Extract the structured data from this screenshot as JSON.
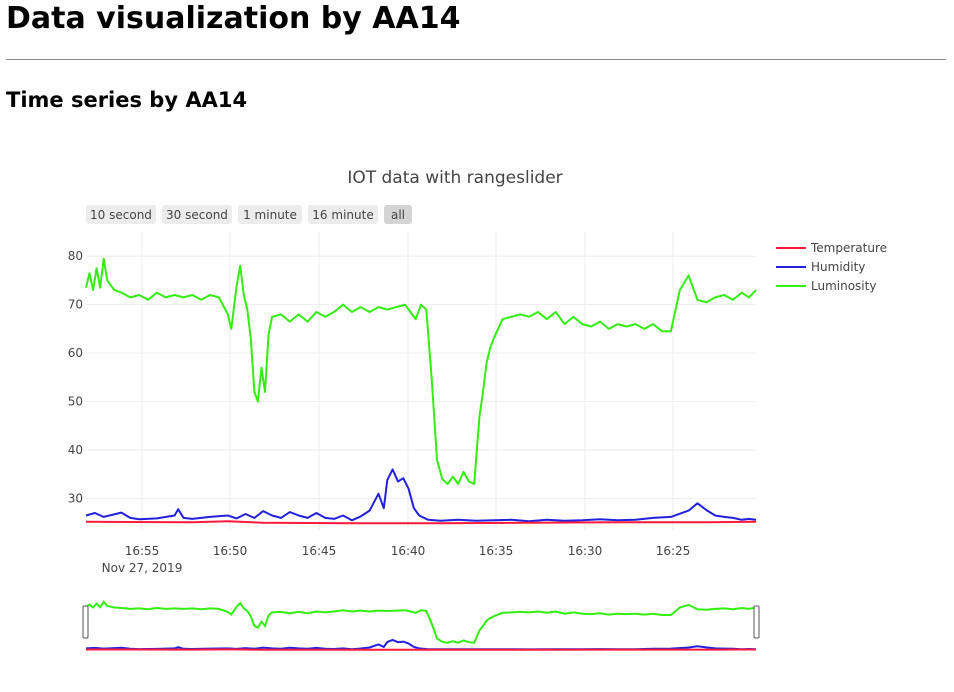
{
  "page": {
    "title": "Data visualization by AA14",
    "section_title": "Time series by AA14"
  },
  "range_selector": {
    "buttons": [
      "10 second",
      "30 second",
      "1 minute",
      "16 minute",
      "all"
    ],
    "active_label": "all"
  },
  "colors": {
    "temperature": "#ff1a3c",
    "humidity": "#2222dd",
    "luminosity": "#33ee11",
    "button_bg": "#ececec",
    "button_active_bg": "#d4d4d4"
  },
  "chart_data": {
    "type": "line",
    "title": "IOT data with rangeslider",
    "x_tick_labels": [
      "16:55",
      "16:50",
      "16:45",
      "16:40",
      "16:35",
      "16:30",
      "16:25"
    ],
    "x_subtitle": "Nov 27, 2019",
    "y_ticks": [
      30,
      40,
      50,
      60,
      70,
      80
    ],
    "ylim": [
      23.5,
      85
    ],
    "x_range_minutes": [
      0,
      37.8
    ],
    "x_axis_order": "reversed (16:55 on left, 16:25 on right)",
    "grid": true,
    "legend_position": "top-right",
    "rangeslider": true,
    "x_note": "x values are minutes elapsed along the axis starting at about 16:57",
    "series": [
      {
        "name": "Temperature",
        "points": [
          [
            0,
            25.2
          ],
          [
            6,
            25.1
          ],
          [
            8,
            25.3
          ],
          [
            10,
            25.0
          ],
          [
            15,
            24.9
          ],
          [
            20,
            24.9
          ],
          [
            25,
            25.0
          ],
          [
            30,
            25.1
          ],
          [
            35,
            25.1
          ],
          [
            37.8,
            25.2
          ]
        ]
      },
      {
        "name": "Humidity",
        "points": [
          [
            0,
            26.5
          ],
          [
            0.5,
            27.0
          ],
          [
            1,
            26.2
          ],
          [
            2,
            27.1
          ],
          [
            2.5,
            26.0
          ],
          [
            3,
            25.7
          ],
          [
            4,
            25.9
          ],
          [
            5,
            26.5
          ],
          [
            5.2,
            27.8
          ],
          [
            5.5,
            26.0
          ],
          [
            6,
            25.8
          ],
          [
            7,
            26.2
          ],
          [
            8,
            26.5
          ],
          [
            8.5,
            25.9
          ],
          [
            9,
            26.8
          ],
          [
            9.5,
            26.0
          ],
          [
            10,
            27.4
          ],
          [
            10.5,
            26.5
          ],
          [
            11,
            26.0
          ],
          [
            11.5,
            27.2
          ],
          [
            12,
            26.5
          ],
          [
            12.5,
            26.0
          ],
          [
            13,
            27.0
          ],
          [
            13.5,
            26.0
          ],
          [
            14,
            25.8
          ],
          [
            14.5,
            26.5
          ],
          [
            15,
            25.5
          ],
          [
            15.5,
            26.3
          ],
          [
            16,
            27.5
          ],
          [
            16.5,
            31.0
          ],
          [
            16.8,
            28.0
          ],
          [
            17,
            33.8
          ],
          [
            17.3,
            36.0
          ],
          [
            17.6,
            33.5
          ],
          [
            17.9,
            34.2
          ],
          [
            18.2,
            32.0
          ],
          [
            18.5,
            28.0
          ],
          [
            18.8,
            26.5
          ],
          [
            19.3,
            25.6
          ],
          [
            20,
            25.4
          ],
          [
            21,
            25.6
          ],
          [
            22,
            25.4
          ],
          [
            23,
            25.5
          ],
          [
            24,
            25.6
          ],
          [
            25,
            25.3
          ],
          [
            26,
            25.6
          ],
          [
            27,
            25.4
          ],
          [
            28,
            25.5
          ],
          [
            29,
            25.7
          ],
          [
            30,
            25.5
          ],
          [
            31,
            25.6
          ],
          [
            32,
            26.0
          ],
          [
            33,
            26.2
          ],
          [
            34,
            27.5
          ],
          [
            34.5,
            29.0
          ],
          [
            35,
            27.6
          ],
          [
            35.5,
            26.5
          ],
          [
            36,
            26.2
          ],
          [
            36.5,
            26.0
          ],
          [
            37,
            25.6
          ],
          [
            37.4,
            25.8
          ],
          [
            37.8,
            25.6
          ]
        ]
      },
      {
        "name": "Luminosity",
        "points": [
          [
            0,
            73.5
          ],
          [
            0.2,
            76.5
          ],
          [
            0.4,
            73.0
          ],
          [
            0.6,
            77.5
          ],
          [
            0.8,
            73.5
          ],
          [
            1,
            79.5
          ],
          [
            1.2,
            75.0
          ],
          [
            1.4,
            74.0
          ],
          [
            1.6,
            73.0
          ],
          [
            2,
            72.5
          ],
          [
            2.5,
            71.5
          ],
          [
            3,
            72.0
          ],
          [
            3.5,
            71.0
          ],
          [
            4,
            72.5
          ],
          [
            4.5,
            71.5
          ],
          [
            5,
            72.0
          ],
          [
            5.5,
            71.5
          ],
          [
            6,
            72.0
          ],
          [
            6.5,
            71.0
          ],
          [
            7,
            72.0
          ],
          [
            7.5,
            71.5
          ],
          [
            8,
            68.0
          ],
          [
            8.2,
            65.0
          ],
          [
            8.5,
            74.0
          ],
          [
            8.7,
            78.0
          ],
          [
            8.9,
            72.0
          ],
          [
            9.1,
            69.0
          ],
          [
            9.3,
            63.0
          ],
          [
            9.5,
            52.0
          ],
          [
            9.7,
            50.0
          ],
          [
            9.9,
            57.0
          ],
          [
            10.1,
            52.0
          ],
          [
            10.3,
            64.0
          ],
          [
            10.5,
            67.5
          ],
          [
            11,
            68.0
          ],
          [
            11.5,
            66.5
          ],
          [
            12,
            68.0
          ],
          [
            12.5,
            66.5
          ],
          [
            13,
            68.5
          ],
          [
            13.5,
            67.5
          ],
          [
            14,
            68.5
          ],
          [
            14.5,
            70.0
          ],
          [
            15,
            68.5
          ],
          [
            15.5,
            69.5
          ],
          [
            16,
            68.5
          ],
          [
            16.5,
            69.5
          ],
          [
            17,
            69.0
          ],
          [
            17.5,
            69.5
          ],
          [
            18,
            70.0
          ],
          [
            18.3,
            68.5
          ],
          [
            18.6,
            67.0
          ],
          [
            18.9,
            70.0
          ],
          [
            19.2,
            69.0
          ],
          [
            19.5,
            55.0
          ],
          [
            19.8,
            38.0
          ],
          [
            20.1,
            34.0
          ],
          [
            20.4,
            33.0
          ],
          [
            20.7,
            34.5
          ],
          [
            21,
            33.0
          ],
          [
            21.3,
            35.5
          ],
          [
            21.6,
            33.5
          ],
          [
            21.9,
            33.0
          ],
          [
            22.2,
            47.0
          ],
          [
            22.4,
            52.0
          ],
          [
            22.6,
            58.0
          ],
          [
            22.8,
            61.0
          ],
          [
            23,
            63.0
          ],
          [
            23.5,
            67.0
          ],
          [
            24,
            67.5
          ],
          [
            24.5,
            68.0
          ],
          [
            25,
            67.5
          ],
          [
            25.5,
            68.5
          ],
          [
            26,
            67.0
          ],
          [
            26.5,
            68.5
          ],
          [
            27,
            66.0
          ],
          [
            27.5,
            67.5
          ],
          [
            28,
            66.0
          ],
          [
            28.5,
            65.5
          ],
          [
            29,
            66.5
          ],
          [
            29.5,
            65.0
          ],
          [
            30,
            66.0
          ],
          [
            30.5,
            65.5
          ],
          [
            31,
            66.0
          ],
          [
            31.5,
            65.0
          ],
          [
            32,
            66.0
          ],
          [
            32.5,
            64.5
          ],
          [
            33,
            64.5
          ],
          [
            33.5,
            73.0
          ],
          [
            34,
            76.0
          ],
          [
            34.5,
            71.0
          ],
          [
            35,
            70.5
          ],
          [
            35.5,
            71.5
          ],
          [
            36,
            72.0
          ],
          [
            36.5,
            71.0
          ],
          [
            37,
            72.5
          ],
          [
            37.4,
            71.5
          ],
          [
            37.8,
            73.0
          ]
        ]
      }
    ]
  }
}
